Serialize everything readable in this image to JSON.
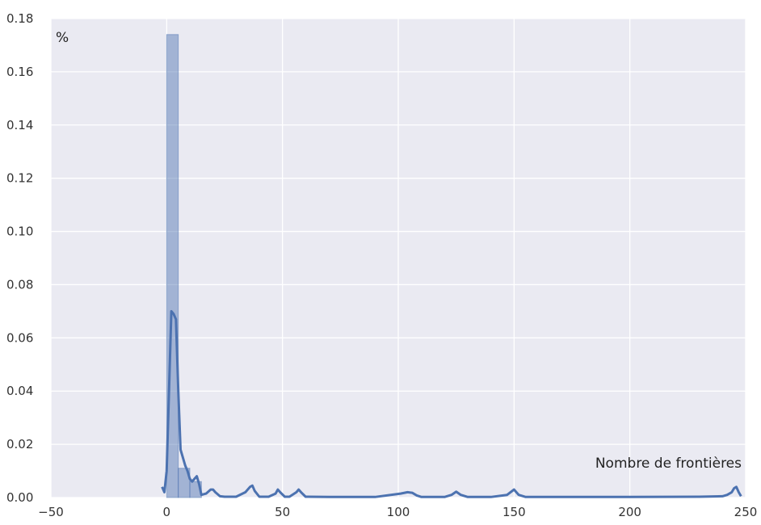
{
  "chart_data": {
    "type": "bar",
    "title": "",
    "xlabel": "Nombre de frontières",
    "ylabel": "%",
    "xlim": [
      -50,
      250
    ],
    "ylim": [
      0,
      0.18
    ],
    "x_ticks": [
      "−50",
      "0",
      "50",
      "100",
      "150",
      "200",
      "250"
    ],
    "x_tick_values": [
      -50,
      0,
      50,
      100,
      150,
      200,
      250
    ],
    "y_ticks": [
      "0.00",
      "0.02",
      "0.04",
      "0.06",
      "0.08",
      "0.10",
      "0.12",
      "0.14",
      "0.16",
      "0.18"
    ],
    "y_tick_values": [
      0,
      0.02,
      0.04,
      0.06,
      0.08,
      0.1,
      0.12,
      0.14,
      0.16,
      0.18
    ],
    "grid": true,
    "background_color": "#eaeaf2",
    "grid_color": "#ffffff",
    "bar_color": "#4c72b0",
    "histogram": {
      "bin_edges": [
        0,
        5,
        10,
        15
      ],
      "values": [
        0.174,
        0.011,
        0.006
      ]
    },
    "kde": {
      "x": [
        -2,
        -1,
        0,
        1,
        2,
        3,
        4,
        5,
        6,
        7,
        8,
        9,
        10,
        11,
        12,
        13,
        14,
        15,
        17,
        19,
        20,
        21,
        23,
        25,
        30,
        34,
        36,
        37,
        38,
        40,
        44,
        47,
        48,
        49,
        51,
        53,
        56,
        57,
        58,
        60,
        70,
        90,
        101,
        104,
        106,
        108,
        110,
        120,
        123,
        125,
        127,
        130,
        140,
        147,
        150,
        152,
        155,
        160,
        200,
        230,
        240,
        242,
        244,
        245,
        246,
        247,
        248
      ],
      "y": [
        0.004,
        0.002,
        0.01,
        0.04,
        0.07,
        0.069,
        0.067,
        0.04,
        0.018,
        0.015,
        0.012,
        0.01,
        0.007,
        0.006,
        0.007,
        0.008,
        0.005,
        0.001,
        0.0015,
        0.003,
        0.003,
        0.002,
        0.0005,
        0.0003,
        0.0003,
        0.002,
        0.004,
        0.0045,
        0.0025,
        0.0003,
        0.0003,
        0.0015,
        0.003,
        0.002,
        0.0003,
        0.0003,
        0.002,
        0.003,
        0.002,
        0.0003,
        0.0002,
        0.0002,
        0.0015,
        0.002,
        0.0018,
        0.0008,
        0.0002,
        0.0002,
        0.001,
        0.0022,
        0.001,
        0.0002,
        0.0002,
        0.001,
        0.003,
        0.001,
        0.0002,
        0.0002,
        0.0002,
        0.0003,
        0.0005,
        0.001,
        0.002,
        0.0035,
        0.004,
        0.002,
        0.0005
      ]
    }
  }
}
